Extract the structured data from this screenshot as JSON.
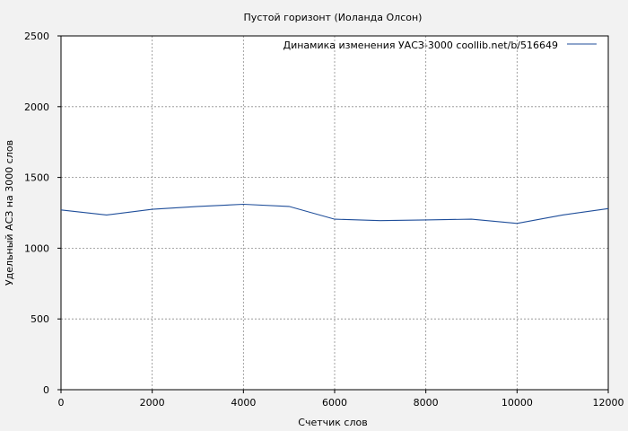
{
  "chart_data": {
    "type": "line",
    "title": "Пустой горизонт (Иоланда Олсон)",
    "xlabel": "Счетчик слов",
    "ylabel": "Удельный АСЗ на 3000 слов",
    "xlim": [
      0,
      12000
    ],
    "ylim": [
      0,
      2500
    ],
    "x_ticks": [
      0,
      2000,
      4000,
      6000,
      8000,
      10000,
      12000
    ],
    "y_ticks": [
      0,
      500,
      1000,
      1500,
      2000,
      2500
    ],
    "x_tick_labels": [
      "0",
      "2000",
      "4000",
      "6000",
      "8000",
      "10000",
      "12000"
    ],
    "y_tick_labels": [
      "0",
      "500",
      "1000",
      "1500",
      "2000",
      "2500"
    ],
    "grid": true,
    "legend_position": "top-right",
    "series": [
      {
        "name": "Динамика изменения УАСЗ-3000  coollib.net/b/516649",
        "color": "#1f4e9a",
        "x": [
          0,
          1000,
          2000,
          3000,
          4000,
          5000,
          6000,
          7000,
          8000,
          9000,
          10000,
          11000,
          12000
        ],
        "y": [
          1270,
          1235,
          1275,
          1295,
          1310,
          1295,
          1205,
          1195,
          1200,
          1205,
          1175,
          1235,
          1280
        ]
      }
    ]
  }
}
